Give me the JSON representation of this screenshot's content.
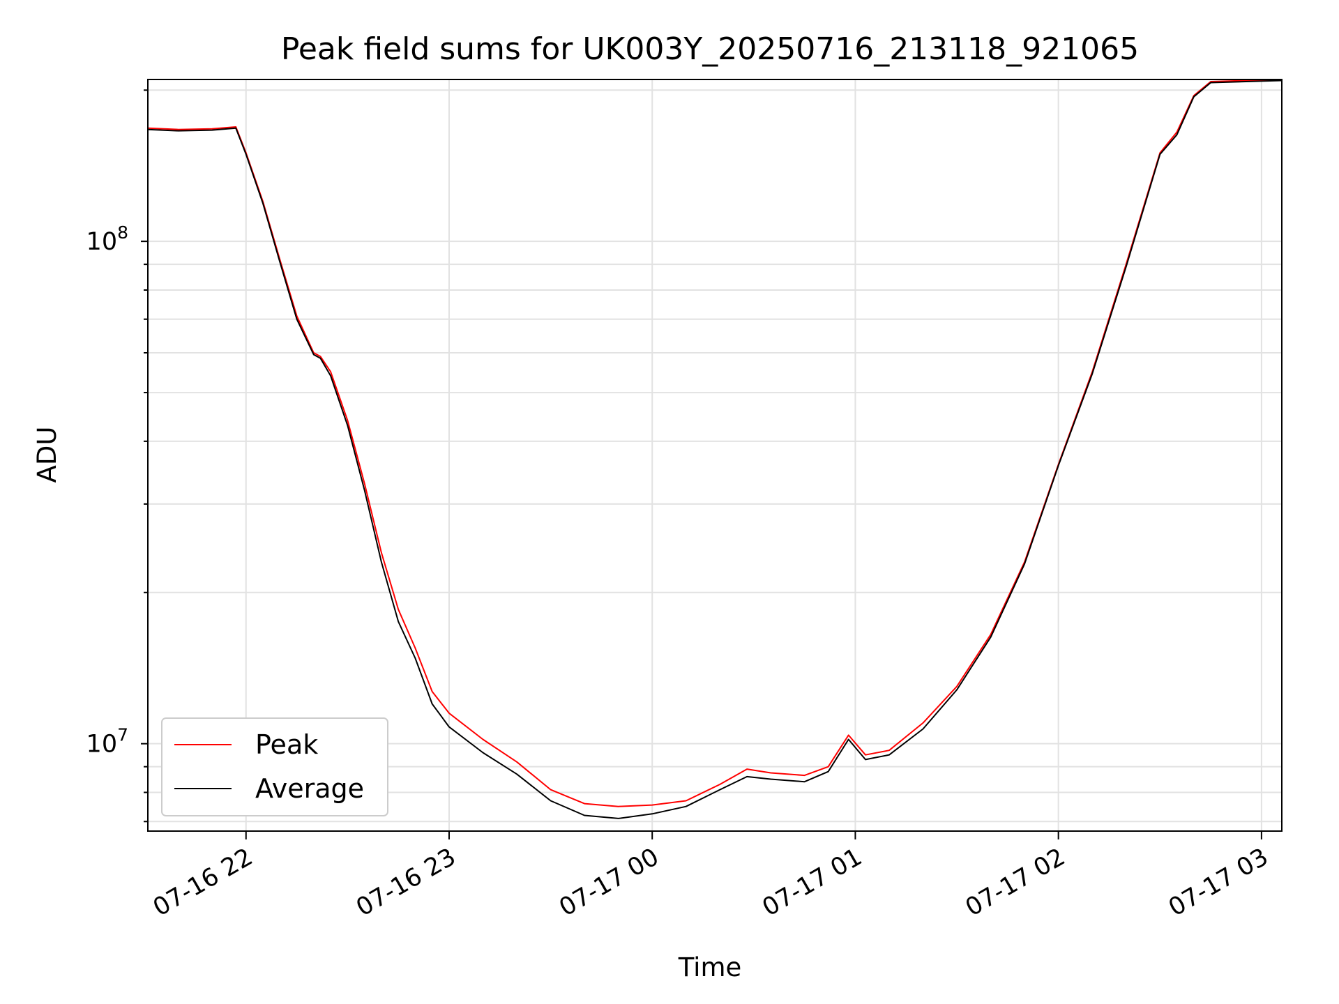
{
  "chart_data": {
    "type": "line",
    "title": "Peak field sums for UK003Y_20250716_213118_921065",
    "xlabel": "Time",
    "ylabel": "ADU",
    "x_scale": "time",
    "y_scale": "log",
    "xlim": [
      "2025-07-16T21:31:00",
      "2025-07-17T03:06:00"
    ],
    "ylim": [
      6700000,
      210000000
    ],
    "grid": true,
    "legend": {
      "placement": "lower-left"
    },
    "x_ticks": [
      {
        "label": "07-16 22",
        "value": "2025-07-16T22:00:00"
      },
      {
        "label": "07-16 23",
        "value": "2025-07-16T23:00:00"
      },
      {
        "label": "07-17 00",
        "value": "2025-07-17T00:00:00"
      },
      {
        "label": "07-17 01",
        "value": "2025-07-17T01:00:00"
      },
      {
        "label": "07-17 02",
        "value": "2025-07-17T02:00:00"
      },
      {
        "label": "07-17 03",
        "value": "2025-07-17T03:00:00"
      }
    ],
    "y_ticks": [
      {
        "base": "10",
        "exp": "7",
        "value": 10000000
      },
      {
        "base": "10",
        "exp": "8",
        "value": 100000000
      }
    ],
    "series": [
      {
        "name": "Peak",
        "color": "#ff0000",
        "points": [
          [
            "2025-07-16T21:31:00",
            168000000
          ],
          [
            "2025-07-16T21:40:00",
            167000000
          ],
          [
            "2025-07-16T21:50:00",
            167500000
          ],
          [
            "2025-07-16T21:57:00",
            169000000
          ],
          [
            "2025-07-16T22:00:00",
            150000000
          ],
          [
            "2025-07-16T22:05:00",
            120000000
          ],
          [
            "2025-07-16T22:10:00",
            92000000
          ],
          [
            "2025-07-16T22:15:00",
            71000000
          ],
          [
            "2025-07-16T22:20:00",
            60000000
          ],
          [
            "2025-07-16T22:22:00",
            59000000
          ],
          [
            "2025-07-16T22:25:00",
            55000000
          ],
          [
            "2025-07-16T22:30:00",
            44000000
          ],
          [
            "2025-07-16T22:35:00",
            33000000
          ],
          [
            "2025-07-16T22:40:00",
            24000000
          ],
          [
            "2025-07-16T22:45:00",
            18500000
          ],
          [
            "2025-07-16T22:50:00",
            15500000
          ],
          [
            "2025-07-16T22:55:00",
            12700000
          ],
          [
            "2025-07-16T23:00:00",
            11500000
          ],
          [
            "2025-07-16T23:10:00",
            10200000
          ],
          [
            "2025-07-16T23:20:00",
            9200000
          ],
          [
            "2025-07-16T23:30:00",
            8100000
          ],
          [
            "2025-07-16T23:40:00",
            7600000
          ],
          [
            "2025-07-16T23:50:00",
            7500000
          ],
          [
            "2025-07-17T00:00:00",
            7550000
          ],
          [
            "2025-07-17T00:10:00",
            7700000
          ],
          [
            "2025-07-17T00:20:00",
            8300000
          ],
          [
            "2025-07-17T00:28:00",
            8900000
          ],
          [
            "2025-07-17T00:35:00",
            8750000
          ],
          [
            "2025-07-17T00:45:00",
            8650000
          ],
          [
            "2025-07-17T00:52:00",
            9000000
          ],
          [
            "2025-07-17T00:58:00",
            10400000
          ],
          [
            "2025-07-17T01:03:00",
            9500000
          ],
          [
            "2025-07-17T01:10:00",
            9700000
          ],
          [
            "2025-07-17T01:20:00",
            11000000
          ],
          [
            "2025-07-17T01:30:00",
            13000000
          ],
          [
            "2025-07-17T01:40:00",
            16500000
          ],
          [
            "2025-07-17T01:50:00",
            23000000
          ],
          [
            "2025-07-17T02:00:00",
            36000000
          ],
          [
            "2025-07-17T02:10:00",
            55000000
          ],
          [
            "2025-07-17T02:20:00",
            90000000
          ],
          [
            "2025-07-17T02:30:00",
            150000000
          ],
          [
            "2025-07-17T02:35:00",
            165000000
          ],
          [
            "2025-07-17T02:40:00",
            195000000
          ],
          [
            "2025-07-17T02:45:00",
            208000000
          ],
          [
            "2025-07-17T03:06:00",
            210000000
          ]
        ]
      },
      {
        "name": "Average",
        "color": "#000000",
        "points": [
          [
            "2025-07-16T21:31:00",
            167000000
          ],
          [
            "2025-07-16T21:40:00",
            166000000
          ],
          [
            "2025-07-16T21:50:00",
            166500000
          ],
          [
            "2025-07-16T21:57:00",
            168000000
          ],
          [
            "2025-07-16T22:00:00",
            149000000
          ],
          [
            "2025-07-16T22:05:00",
            119000000
          ],
          [
            "2025-07-16T22:10:00",
            91000000
          ],
          [
            "2025-07-16T22:15:00",
            70000000
          ],
          [
            "2025-07-16T22:20:00",
            59500000
          ],
          [
            "2025-07-16T22:22:00",
            58500000
          ],
          [
            "2025-07-16T22:25:00",
            54000000
          ],
          [
            "2025-07-16T22:30:00",
            43000000
          ],
          [
            "2025-07-16T22:35:00",
            32000000
          ],
          [
            "2025-07-16T22:40:00",
            23000000
          ],
          [
            "2025-07-16T22:45:00",
            17500000
          ],
          [
            "2025-07-16T22:50:00",
            14800000
          ],
          [
            "2025-07-16T22:55:00",
            12000000
          ],
          [
            "2025-07-16T23:00:00",
            10800000
          ],
          [
            "2025-07-16T23:10:00",
            9600000
          ],
          [
            "2025-07-16T23:20:00",
            8700000
          ],
          [
            "2025-07-16T23:30:00",
            7700000
          ],
          [
            "2025-07-16T23:40:00",
            7200000
          ],
          [
            "2025-07-16T23:50:00",
            7100000
          ],
          [
            "2025-07-17T00:00:00",
            7250000
          ],
          [
            "2025-07-17T00:10:00",
            7500000
          ],
          [
            "2025-07-17T00:20:00",
            8100000
          ],
          [
            "2025-07-17T00:28:00",
            8600000
          ],
          [
            "2025-07-17T00:35:00",
            8500000
          ],
          [
            "2025-07-17T00:45:00",
            8400000
          ],
          [
            "2025-07-17T00:52:00",
            8800000
          ],
          [
            "2025-07-17T00:58:00",
            10200000
          ],
          [
            "2025-07-17T01:03:00",
            9300000
          ],
          [
            "2025-07-17T01:10:00",
            9500000
          ],
          [
            "2025-07-17T01:20:00",
            10700000
          ],
          [
            "2025-07-17T01:30:00",
            12800000
          ],
          [
            "2025-07-17T01:40:00",
            16300000
          ],
          [
            "2025-07-17T01:50:00",
            22800000
          ],
          [
            "2025-07-17T02:00:00",
            35800000
          ],
          [
            "2025-07-17T02:10:00",
            54500000
          ],
          [
            "2025-07-17T02:20:00",
            89000000
          ],
          [
            "2025-07-17T02:30:00",
            149000000
          ],
          [
            "2025-07-17T02:35:00",
            163000000
          ],
          [
            "2025-07-17T02:40:00",
            194000000
          ],
          [
            "2025-07-17T02:45:00",
            207000000
          ],
          [
            "2025-07-17T03:06:00",
            209000000
          ]
        ]
      }
    ]
  }
}
